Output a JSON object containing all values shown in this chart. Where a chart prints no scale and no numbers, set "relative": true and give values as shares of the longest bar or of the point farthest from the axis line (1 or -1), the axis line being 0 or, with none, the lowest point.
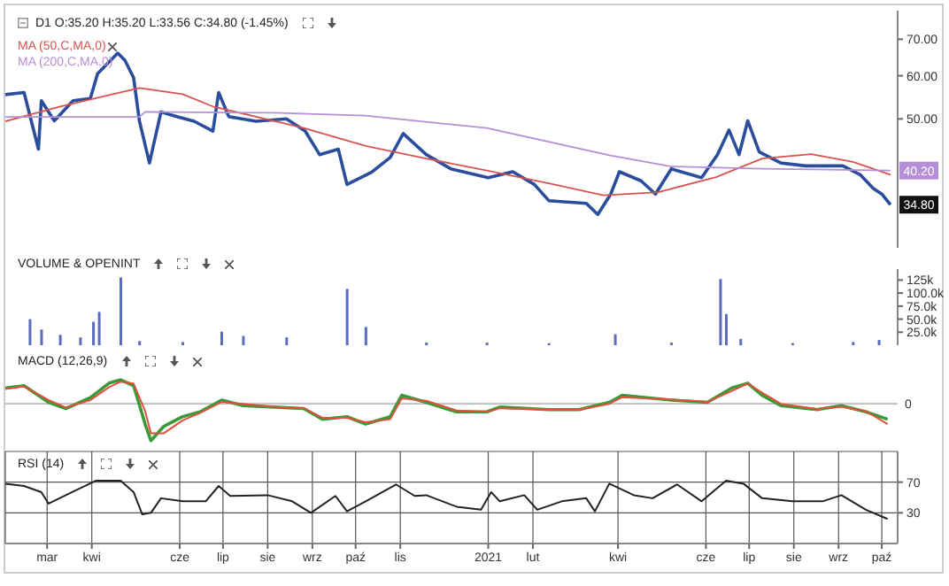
{
  "chart_data": [
    {
      "type": "line",
      "title": "D1 O:35.20 H:35.20 L:33.56 C:34.80 (-1.45%)",
      "log": "y",
      "ylim": [
        29,
        79
      ],
      "yticks": [
        {
          "value": 70,
          "label": "70.00"
        },
        {
          "value": 60,
          "label": "60.00"
        },
        {
          "value": 50,
          "label": "50.00"
        }
      ],
      "xlim": [
        "2020-02-01",
        "2021-10-12"
      ],
      "xticks": [
        "2020-03-01",
        "2020-04-01",
        "2020-06-01",
        "2020-07-01",
        "2020-08-01",
        "2020-09-01",
        "2020-10-01",
        "2020-11-01",
        "2021-01-01",
        "2021-02-01",
        "2021-04-01",
        "2021-06-01",
        "2021-07-01",
        "2021-08-01",
        "2021-09-01",
        "2021-10-01"
      ],
      "tick_labels": "y",
      "legend": "top left",
      "marker": "none",
      "annotations": [
        {
          "text": "40.20",
          "y": 40.2
        },
        {
          "text": "34.80",
          "y": 34.8
        }
      ],
      "series": [
        {
          "color": "#2a4d9c",
          "x": [
            "2020-02-01",
            "2020-02-14",
            "2020-02-24",
            "2020-02-26",
            "2020-03-06",
            "2020-03-19",
            "2020-03-31",
            "2020-04-05",
            "2020-04-19",
            "2020-04-24",
            "2020-04-30",
            "2020-05-04",
            "2020-05-11",
            "2020-05-19",
            "2020-05-30",
            "2020-06-11",
            "2020-06-24",
            "2020-06-28",
            "2020-07-05",
            "2020-07-24",
            "2020-08-14",
            "2020-08-27",
            "2020-09-06",
            "2020-09-19",
            "2020-09-25",
            "2020-10-12",
            "2020-10-25",
            "2020-11-03",
            "2020-11-19",
            "2020-12-06",
            "2021-01-01",
            "2021-01-18",
            "2021-02-02",
            "2021-02-12",
            "2021-03-10",
            "2021-03-18",
            "2021-03-27",
            "2021-04-02",
            "2021-04-17",
            "2021-04-27",
            "2021-05-08",
            "2021-05-29",
            "2021-06-09",
            "2021-06-17",
            "2021-06-24",
            "2021-06-30",
            "2021-07-08",
            "2021-07-23",
            "2021-08-09",
            "2021-09-04",
            "2021-09-16",
            "2021-09-25",
            "2021-10-01",
            "2021-10-07"
          ],
          "values": [
            55.4,
            55.9,
            44,
            54,
            49.6,
            54,
            54.5,
            60.5,
            66,
            64,
            59.5,
            49.6,
            41.5,
            51.5,
            50.5,
            49.5,
            47.5,
            55.9,
            50.5,
            49.5,
            50,
            47.5,
            43,
            44,
            37.9,
            39.9,
            42.5,
            47,
            43,
            40.5,
            39,
            40,
            37.9,
            35.4,
            35,
            33.4,
            36.4,
            40,
            38.5,
            36.4,
            40.5,
            39,
            43,
            47.7,
            43,
            49.6,
            43.5,
            41.5,
            41,
            41,
            39.5,
            37.3,
            36.4,
            34.8
          ]
        },
        {
          "name": "MA (50,C,MA,0)",
          "color": "#d9534f",
          "x": [
            "2020-02-01",
            "2020-03-10",
            "2020-05-04",
            "2020-06-03",
            "2020-06-24",
            "2020-08-26",
            "2020-10-08",
            "2020-11-19",
            "2020-12-31",
            "2021-02-12",
            "2021-03-22",
            "2021-04-29",
            "2021-06-08",
            "2021-07-10",
            "2021-08-13",
            "2021-09-11",
            "2021-10-07"
          ],
          "values": [
            49.5,
            52.7,
            57,
            55.5,
            52.7,
            48.1,
            44.6,
            42.3,
            40.2,
            38.1,
            36.2,
            36.7,
            39.1,
            42.3,
            43.1,
            41.7,
            39.5
          ]
        },
        {
          "name": "MA (200,C,MA,0)",
          "color": "#b48fd6",
          "x": [
            "2020-02-01",
            "2020-05-04",
            "2020-05-08",
            "2020-08-05",
            "2020-10-08",
            "2020-12-31",
            "2021-03-26",
            "2021-05-08",
            "2021-07-10",
            "2021-10-07"
          ],
          "values": [
            50.4,
            50.4,
            51.5,
            51.3,
            50.7,
            48.1,
            42.9,
            40.9,
            40.5,
            40.2
          ]
        }
      ]
    },
    {
      "type": "bar",
      "title": "VOLUME & OPENINT",
      "ylim": [
        0,
        146000
      ],
      "yticks": [
        {
          "value": 125000,
          "label": "125k"
        },
        {
          "value": 100000,
          "label": "100.0k"
        },
        {
          "value": 75000,
          "label": "75.0k"
        },
        {
          "value": 50000,
          "label": "50.0k"
        },
        {
          "value": 25000,
          "label": "25.0k"
        }
      ],
      "xlim": [
        "2020-02-01",
        "2021-10-12"
      ],
      "xticks": [
        "2020-03-01",
        "2020-04-01",
        "2020-06-01",
        "2020-07-01",
        "2020-08-01",
        "2020-09-01",
        "2020-10-01",
        "2020-11-01",
        "2021-01-01",
        "2021-02-01",
        "2021-04-01",
        "2021-06-01",
        "2021-07-01",
        "2021-08-01",
        "2021-09-01",
        "2021-10-01"
      ],
      "tick_labels": "y",
      "color": "#5a6cc0",
      "x": [
        "2020-02-18",
        "2020-02-26",
        "2020-03-10",
        "2020-03-24",
        "2020-04-02",
        "2020-04-06",
        "2020-04-21",
        "2020-05-04",
        "2020-06-03",
        "2020-06-30",
        "2020-07-15",
        "2020-08-14",
        "2020-09-25",
        "2020-10-08",
        "2020-11-19",
        "2020-12-31",
        "2021-02-12",
        "2021-03-30",
        "2021-05-08",
        "2021-06-11",
        "2021-06-15",
        "2021-06-25",
        "2021-07-31",
        "2021-09-11",
        "2021-09-29"
      ],
      "values": [
        50000,
        30000,
        20000,
        15000,
        45000,
        64000,
        130000,
        8000,
        6000,
        26000,
        18000,
        15000,
        108000,
        35000,
        5000,
        5000,
        4000,
        21000,
        5000,
        127000,
        60000,
        12000,
        4000,
        6000,
        10000
      ]
    },
    {
      "type": "line",
      "title": "MACD (12,26,9)",
      "relative": true,
      "xlim": [
        "2020-02-01",
        "2021-10-12"
      ],
      "xticks": [
        "2020-03-01",
        "2020-04-01",
        "2020-06-01",
        "2020-07-01",
        "2020-08-01",
        "2020-09-01",
        "2020-10-01",
        "2020-11-01",
        "2021-01-01",
        "2021-02-01",
        "2021-04-01",
        "2021-06-01",
        "2021-07-01",
        "2021-08-01",
        "2021-09-01",
        "2021-10-01"
      ],
      "tick_labels": false,
      "marker": "none",
      "annotations": [
        "0"
      ],
      "x": [
        "2020-02-01",
        "2020-02-14",
        "2020-03-02",
        "2020-03-14",
        "2020-03-31",
        "2020-04-13",
        "2020-04-21",
        "2020-04-30",
        "2020-05-08",
        "2020-05-12",
        "2020-05-21",
        "2020-06-03",
        "2020-06-15",
        "2020-06-30",
        "2020-07-15",
        "2020-08-05",
        "2020-08-26",
        "2020-09-08",
        "2020-09-25",
        "2020-10-08",
        "2020-10-25",
        "2020-11-02",
        "2020-11-19",
        "2020-12-10",
        "2020-12-31",
        "2021-01-09",
        "2021-02-12",
        "2021-03-05",
        "2021-03-26",
        "2021-04-04",
        "2021-05-08",
        "2021-06-02",
        "2021-06-19",
        "2021-06-30",
        "2021-07-10",
        "2021-07-23",
        "2021-08-17",
        "2021-09-03",
        "2021-09-20",
        "2021-10-05"
      ],
      "series": [
        {
          "color": "#3a9a3a",
          "values": [
            0.43,
            0.49,
            0.04,
            -0.13,
            0.17,
            0.56,
            0.65,
            0.49,
            -0.55,
            -1,
            -0.61,
            -0.35,
            -0.22,
            0.1,
            -0.05,
            -0.09,
            -0.13,
            -0.42,
            -0.35,
            -0.55,
            -0.35,
            0.23,
            0.04,
            -0.22,
            -0.22,
            -0.09,
            -0.16,
            -0.16,
            0.04,
            0.23,
            0.1,
            0.04,
            0.43,
            0.56,
            0.23,
            -0.05,
            -0.16,
            -0.05,
            -0.22,
            -0.42
          ]
        },
        {
          "color": "#e0503a",
          "values": [
            0.4,
            0.47,
            0.1,
            -0.1,
            0.1,
            0.45,
            0.6,
            0.55,
            -0.2,
            -0.8,
            -0.8,
            -0.45,
            -0.25,
            0.05,
            0,
            -0.08,
            -0.12,
            -0.38,
            -0.38,
            -0.5,
            -0.42,
            0.15,
            0.08,
            -0.18,
            -0.22,
            -0.12,
            -0.15,
            -0.16,
            0,
            0.18,
            0.12,
            0.05,
            0.35,
            0.55,
            0.3,
            0,
            -0.14,
            -0.08,
            -0.2,
            -0.55
          ]
        }
      ]
    },
    {
      "type": "line",
      "title": "RSI (14)",
      "ylim": [
        -10,
        110
      ],
      "yticks": [
        70,
        30
      ],
      "xlim": [
        "2020-02-01",
        "2021-10-12"
      ],
      "xticks": [
        {
          "value": "2020-03-01",
          "label": "mar"
        },
        {
          "value": "2020-04-01",
          "label": "kwi"
        },
        {
          "value": "2020-06-01",
          "label": "cze"
        },
        {
          "value": "2020-07-01",
          "label": "lip"
        },
        {
          "value": "2020-08-01",
          "label": "sie"
        },
        {
          "value": "2020-09-01",
          "label": "wrz"
        },
        {
          "value": "2020-10-01",
          "label": "paź"
        },
        {
          "value": "2020-11-01",
          "label": "lis"
        },
        {
          "value": "2021-01-01",
          "label": "2021"
        },
        {
          "value": "2021-02-01",
          "label": "lut"
        },
        {
          "value": "2021-04-01",
          "label": "kwi"
        },
        {
          "value": "2021-06-01",
          "label": "cze"
        },
        {
          "value": "2021-07-01",
          "label": "lip"
        },
        {
          "value": "2021-08-01",
          "label": "sie"
        },
        {
          "value": "2021-09-01",
          "label": "wrz"
        },
        {
          "value": "2021-10-01",
          "label": "paź"
        }
      ],
      "grid": true,
      "marker": "none",
      "color": "#222222",
      "x": [
        "2020-02-01",
        "2020-02-14",
        "2020-02-26",
        "2020-03-02",
        "2020-03-14",
        "2020-04-04",
        "2020-04-21",
        "2020-04-30",
        "2020-05-06",
        "2020-05-12",
        "2020-05-19",
        "2020-06-03",
        "2020-06-19",
        "2020-06-28",
        "2020-07-06",
        "2020-08-01",
        "2020-08-18",
        "2020-08-31",
        "2020-09-17",
        "2020-09-25",
        "2020-10-08",
        "2020-10-29",
        "2020-11-11",
        "2020-11-19",
        "2020-12-10",
        "2020-12-27",
        "2021-01-03",
        "2021-01-09",
        "2021-01-26",
        "2021-02-04",
        "2021-02-21",
        "2021-03-10",
        "2021-03-16",
        "2021-03-26",
        "2021-04-12",
        "2021-04-25",
        "2021-05-12",
        "2021-05-29",
        "2021-06-15",
        "2021-06-27",
        "2021-07-10",
        "2021-07-31",
        "2021-08-21",
        "2021-09-03",
        "2021-09-20",
        "2021-10-05"
      ],
      "values": [
        68,
        65,
        57,
        42,
        53,
        72,
        72,
        57,
        28,
        30,
        49,
        45,
        45,
        65,
        52,
        53,
        45,
        30,
        52,
        32,
        45,
        67,
        52,
        53,
        38,
        34,
        57,
        45,
        53,
        34,
        45,
        49,
        32,
        68,
        53,
        49,
        67,
        45,
        72,
        68,
        49,
        45,
        45,
        53,
        34,
        22
      ]
    }
  ]
}
